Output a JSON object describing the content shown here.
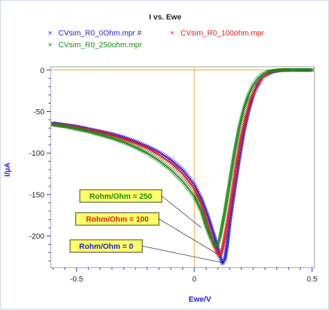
{
  "chart_data": {
    "type": "scatter",
    "title": "I vs. Ewe",
    "xlabel": "Ewe/V",
    "ylabel": "I/µA",
    "xlim": [
      -0.61,
      0.51
    ],
    "ylim": [
      -238,
      4
    ],
    "xticks": [
      -0.5,
      0,
      0.5
    ],
    "xtick_labels": [
      "-0.5",
      "0",
      "0.5"
    ],
    "yticks": [
      0,
      -50,
      -100,
      -150,
      -200
    ],
    "ytick_labels": [
      "0",
      "-50",
      "-100",
      "-150",
      "-200"
    ],
    "grid": false,
    "reference_lines": {
      "x": 0,
      "y": 0,
      "color": "#f0a030"
    },
    "legend_position": "top",
    "series": [
      {
        "name": "CVsim_R0_0Ohm.mpr #",
        "color": "#2222dd",
        "marker": "x",
        "x": [
          -0.6,
          -0.55,
          -0.5,
          -0.45,
          -0.4,
          -0.35,
          -0.3,
          -0.25,
          -0.2,
          -0.15,
          -0.1,
          -0.05,
          0.0,
          0.03,
          0.06,
          0.09,
          0.11,
          0.12,
          0.13,
          0.14,
          0.15,
          0.17,
          0.19,
          0.21,
          0.23,
          0.25,
          0.27,
          0.29,
          0.31,
          0.33,
          0.35,
          0.38,
          0.42,
          0.46,
          0.5
        ],
        "y": [
          -64,
          -66,
          -68,
          -71,
          -74,
          -77,
          -81,
          -86,
          -92,
          -99,
          -108,
          -120,
          -138,
          -155,
          -178,
          -205,
          -225,
          -233,
          -228,
          -210,
          -185,
          -145,
          -108,
          -75,
          -50,
          -30,
          -17,
          -9,
          -5,
          -2,
          -1,
          0,
          0,
          0,
          0
        ]
      },
      {
        "name": "CVsim_R0_100ohm.mpr",
        "color": "#e02020",
        "marker": "x",
        "x": [
          -0.6,
          -0.55,
          -0.5,
          -0.45,
          -0.4,
          -0.35,
          -0.3,
          -0.25,
          -0.2,
          -0.15,
          -0.1,
          -0.05,
          0.0,
          0.03,
          0.06,
          0.08,
          0.1,
          0.11,
          0.12,
          0.14,
          0.16,
          0.18,
          0.2,
          0.22,
          0.24,
          0.26,
          0.28,
          0.3,
          0.32,
          0.34,
          0.37,
          0.42,
          0.5
        ],
        "y": [
          -65,
          -67,
          -69,
          -72,
          -75,
          -79,
          -83,
          -88,
          -94,
          -102,
          -112,
          -125,
          -143,
          -162,
          -188,
          -208,
          -222,
          -224,
          -215,
          -185,
          -150,
          -112,
          -80,
          -55,
          -36,
          -22,
          -12,
          -6,
          -3,
          -1,
          0,
          0,
          0
        ]
      },
      {
        "name": "CVsim_R0_250ohm.mpr",
        "color": "#1a8a1a",
        "marker": "x",
        "x": [
          -0.6,
          -0.55,
          -0.5,
          -0.45,
          -0.4,
          -0.35,
          -0.3,
          -0.25,
          -0.2,
          -0.15,
          -0.1,
          -0.05,
          0.0,
          0.03,
          0.05,
          0.07,
          0.09,
          0.1,
          0.11,
          0.13,
          0.15,
          0.17,
          0.19,
          0.21,
          0.23,
          0.25,
          0.27,
          0.29,
          0.31,
          0.33,
          0.36,
          0.42,
          0.5
        ],
        "y": [
          -66,
          -68,
          -71,
          -74,
          -78,
          -82,
          -87,
          -93,
          -100,
          -109,
          -120,
          -134,
          -152,
          -170,
          -188,
          -203,
          -212,
          -211,
          -200,
          -170,
          -135,
          -100,
          -70,
          -47,
          -30,
          -18,
          -10,
          -5,
          -2,
          -1,
          0,
          0,
          0
        ]
      }
    ],
    "annotations": [
      {
        "text": "Rohm/Ohm = 250",
        "bg": "#ffff66",
        "color": "#1a8a1a",
        "target_x": 0.03,
        "target_y": -190
      },
      {
        "text": "Rohm/Ohm = 100",
        "bg": "#ffff66",
        "color": "#e02020",
        "target_x": 0.1,
        "target_y": -222
      },
      {
        "text": "Rohm/Ohm = 0",
        "bg": "#ffff66",
        "color": "#2222dd",
        "target_x": 0.12,
        "target_y": -232
      }
    ]
  }
}
